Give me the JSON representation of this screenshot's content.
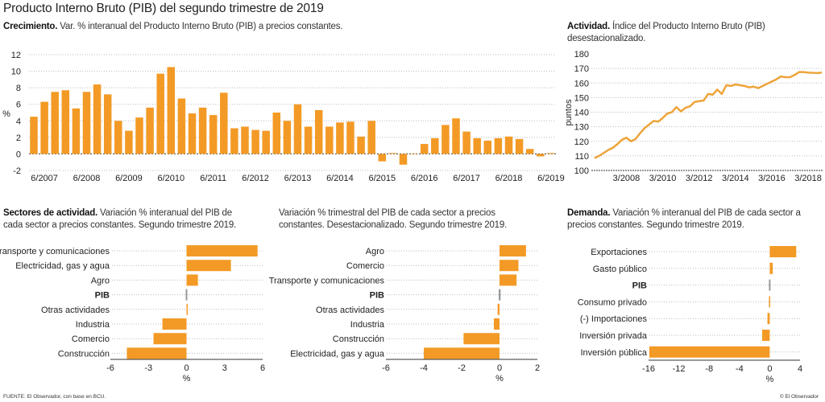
{
  "title": "Producto Interno Bruto (PIB) del segundo trimestre de 2019",
  "footer": {
    "source": "FUENTE: El Observador, con base en BCU.",
    "copyright": "© El Observador"
  },
  "colors": {
    "bar": "#F39A26",
    "line": "#EDA43A",
    "pib": "#9a9a9a",
    "grid": "#bbbbbb"
  },
  "chart_data": [
    {
      "id": "crecimiento",
      "type": "bar",
      "title_bold": "Crecimiento.",
      "title": "Var. % interanual del Producto Interno Bruto (PIB) a precios constantes.",
      "ylabel": "%",
      "ylim": [
        -2,
        12
      ],
      "yticks": [
        -2,
        0,
        2,
        4,
        6,
        8,
        10,
        12
      ],
      "xtick_labels": [
        "6/2007",
        "6/2008",
        "6/2009",
        "6/2010",
        "6/2011",
        "6/2012",
        "6/2013",
        "6/2014",
        "6/2015",
        "6/2016",
        "6/2017",
        "6/2018",
        "6/2019"
      ],
      "values": [
        4.5,
        6.3,
        7.5,
        7.7,
        5.5,
        7.5,
        8.4,
        7.2,
        4.0,
        2.8,
        4.4,
        5.6,
        9.7,
        10.5,
        6.7,
        4.9,
        5.6,
        4.7,
        7.4,
        3.1,
        3.3,
        2.9,
        2.8,
        5.0,
        4.0,
        6.0,
        3.3,
        5.3,
        3.3,
        3.8,
        3.9,
        2.1,
        4.0,
        -0.9,
        0.1,
        -1.3,
        0.0,
        1.2,
        1.9,
        3.5,
        4.3,
        2.7,
        1.9,
        1.6,
        1.9,
        2.1,
        1.8,
        0.6,
        -0.3,
        0.1
      ],
      "grid": true
    },
    {
      "id": "actividad",
      "type": "line",
      "title_bold": "Actividad.",
      "title": "Índice del Producto Interno Bruto (PIB) desestacionalizado.",
      "ylabel": "puntos",
      "ylim": [
        100,
        180
      ],
      "yticks": [
        100,
        110,
        120,
        130,
        140,
        150,
        160,
        170,
        180
      ],
      "xtick_labels": [
        "3/2008",
        "3/2010",
        "3/2012",
        "3/2014",
        "3/2016",
        "3/2018"
      ],
      "values": [
        108.5,
        110,
        112,
        114,
        115.5,
        118,
        121,
        122.5,
        120,
        121.5,
        125.5,
        129,
        131.5,
        134,
        133.5,
        136,
        139,
        140,
        143.5,
        140.5,
        143,
        144,
        147,
        147.5,
        148,
        152.5,
        152,
        155.5,
        152.5,
        158.5,
        158,
        159,
        158.5,
        158,
        157,
        157.5,
        156.5,
        158,
        159.5,
        161,
        162.5,
        164.5,
        164,
        164,
        165.5,
        167.5,
        167.5,
        167.2,
        167,
        166.8,
        167.2
      ],
      "grid": true
    },
    {
      "id": "sectores",
      "type": "bar",
      "orientation": "horizontal",
      "title_bold": "Sectores de actividad.",
      "title": "Variación % interanual del PIB de cada sector a precios constantes. Segundo trimestre 2019.",
      "xlabel": "%",
      "xlim": [
        -6,
        6
      ],
      "xticks": [
        -6,
        -3,
        0,
        3,
        6
      ],
      "categories": [
        "Transporte y comunicaciones",
        "Electricidad, gas y agua",
        "Agro",
        "PIB",
        "Otras actividades",
        "Industria",
        "Comercio",
        "Construcción"
      ],
      "values": [
        5.6,
        3.5,
        0.9,
        0.1,
        0.05,
        -1.9,
        -2.6,
        -4.7
      ]
    },
    {
      "id": "trimestral",
      "type": "bar",
      "orientation": "horizontal",
      "title_bold": "",
      "title": "Variación % trimestral del PIB de cada sector a precios constantes. Desestacionalizado. Segundo trimestre 2019.",
      "xlabel": "%",
      "xlim": [
        -6,
        2
      ],
      "xticks": [
        -6,
        -4,
        -2,
        0,
        2
      ],
      "categories": [
        "Agro",
        "Comercio",
        "Transporte y comunicaciones",
        "PIB",
        "Otras actividades",
        "Industria",
        "Construcción",
        "Electricidad, gas y agua"
      ],
      "values": [
        1.4,
        1.0,
        0.9,
        0.1,
        -0.1,
        -0.3,
        -1.9,
        -4.0
      ]
    },
    {
      "id": "demanda",
      "type": "bar",
      "orientation": "horizontal",
      "title_bold": "Demanda.",
      "title": "Variación % interanual del PIB de cada sector a precios constantes. Segundo trimestre 2019.",
      "xlabel": "%",
      "xlim": [
        -16,
        4
      ],
      "xticks": [
        -16,
        -12,
        -8,
        -4,
        0,
        4
      ],
      "categories": [
        "Exportaciones",
        "Gasto público",
        "PIB",
        "Consumo privado",
        "(-) Importaciones",
        "Inversión privada",
        "Inversión pública"
      ],
      "values": [
        3.5,
        0.4,
        0.1,
        -0.1,
        -0.3,
        -1.0,
        -15.9
      ]
    }
  ]
}
